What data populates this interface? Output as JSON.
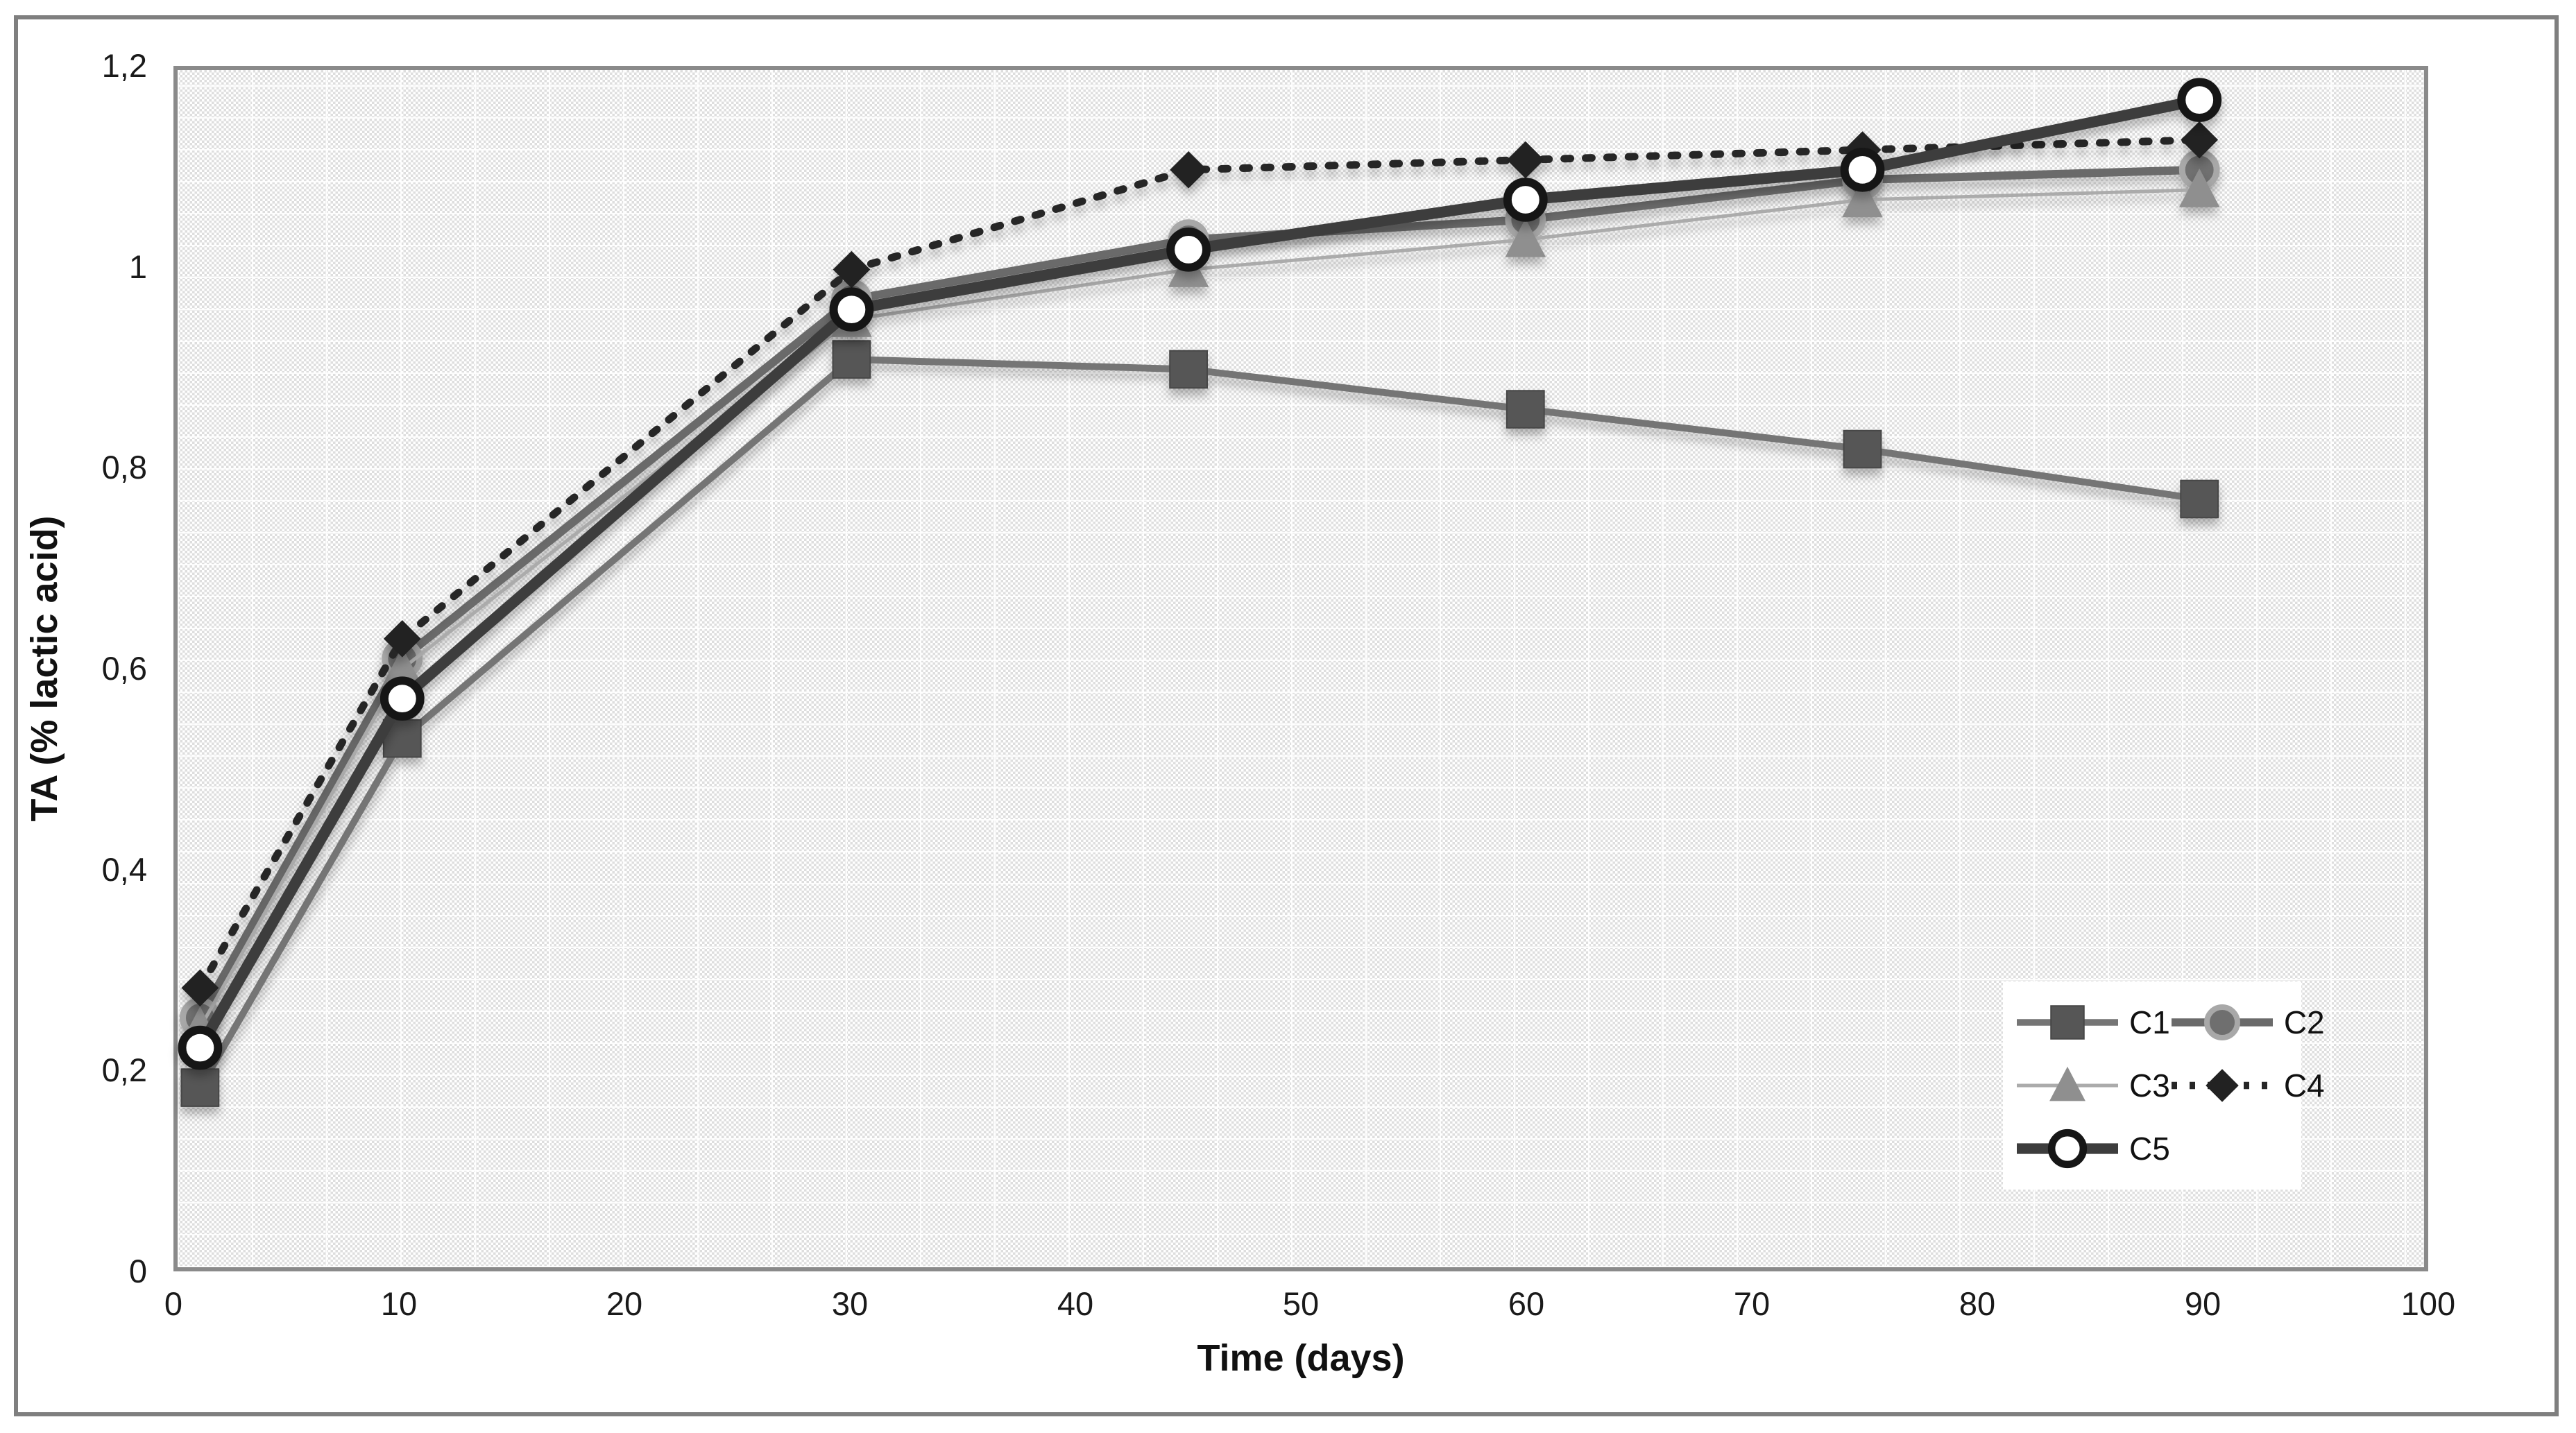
{
  "chart_data": {
    "type": "line",
    "title": "",
    "xlabel": "Time (days)",
    "ylabel": "TA (% lactic acid)",
    "xlim": [
      0,
      100
    ],
    "ylim": [
      0,
      1.2
    ],
    "grid": false,
    "legend_position": "inside-bottom-right",
    "x": [
      1,
      10,
      30,
      45,
      60,
      75,
      90
    ],
    "series": [
      {
        "name": "C1",
        "marker": "square",
        "line_style": "solid",
        "line_color": "#757575",
        "marker_color": "#565656",
        "values": [
          0.18,
          0.53,
          0.91,
          0.9,
          0.86,
          0.82,
          0.77
        ]
      },
      {
        "name": "C2",
        "marker": "circle",
        "line_style": "solid",
        "line_color": "#6a6a6a",
        "marker_color": "#6f6f6f",
        "values": [
          0.25,
          0.61,
          0.97,
          1.03,
          1.05,
          1.09,
          1.1
        ]
      },
      {
        "name": "C3",
        "marker": "triangle",
        "line_style": "solid",
        "line_color": "#ababab",
        "marker_color": "#8f8f8f",
        "values": [
          0.24,
          0.6,
          0.95,
          1.0,
          1.03,
          1.07,
          1.08
        ]
      },
      {
        "name": "C4",
        "marker": "diamond",
        "line_style": "dotted",
        "line_color": "#262626",
        "marker_color": "#222222",
        "values": [
          0.28,
          0.63,
          1.0,
          1.1,
          1.11,
          1.12,
          1.13
        ]
      },
      {
        "name": "C5",
        "marker": "open-circle",
        "line_style": "solid",
        "line_color": "#3d3d3d",
        "marker_color": "#ffffff",
        "values": [
          0.22,
          0.57,
          0.96,
          1.02,
          1.07,
          1.1,
          1.17
        ]
      }
    ],
    "y_axis": {
      "tick_values": [
        0,
        0.2,
        0.4,
        0.6,
        0.8,
        1.0,
        1.2
      ],
      "tick_labels": [
        "0",
        "0,2",
        "0,4",
        "0,6",
        "0,8",
        "1",
        "1,2"
      ]
    },
    "x_axis": {
      "tick_values": [
        0,
        10,
        20,
        30,
        40,
        50,
        60,
        70,
        80,
        90,
        100
      ],
      "tick_labels": [
        "0",
        "10",
        "20",
        "30",
        "40",
        "50",
        "60",
        "70",
        "80",
        "90",
        "100"
      ]
    }
  },
  "frame": {
    "border_color": "#7f7f7f",
    "plot_border_color": "#8a8a8a",
    "plot_pattern_color": "#dedede"
  }
}
